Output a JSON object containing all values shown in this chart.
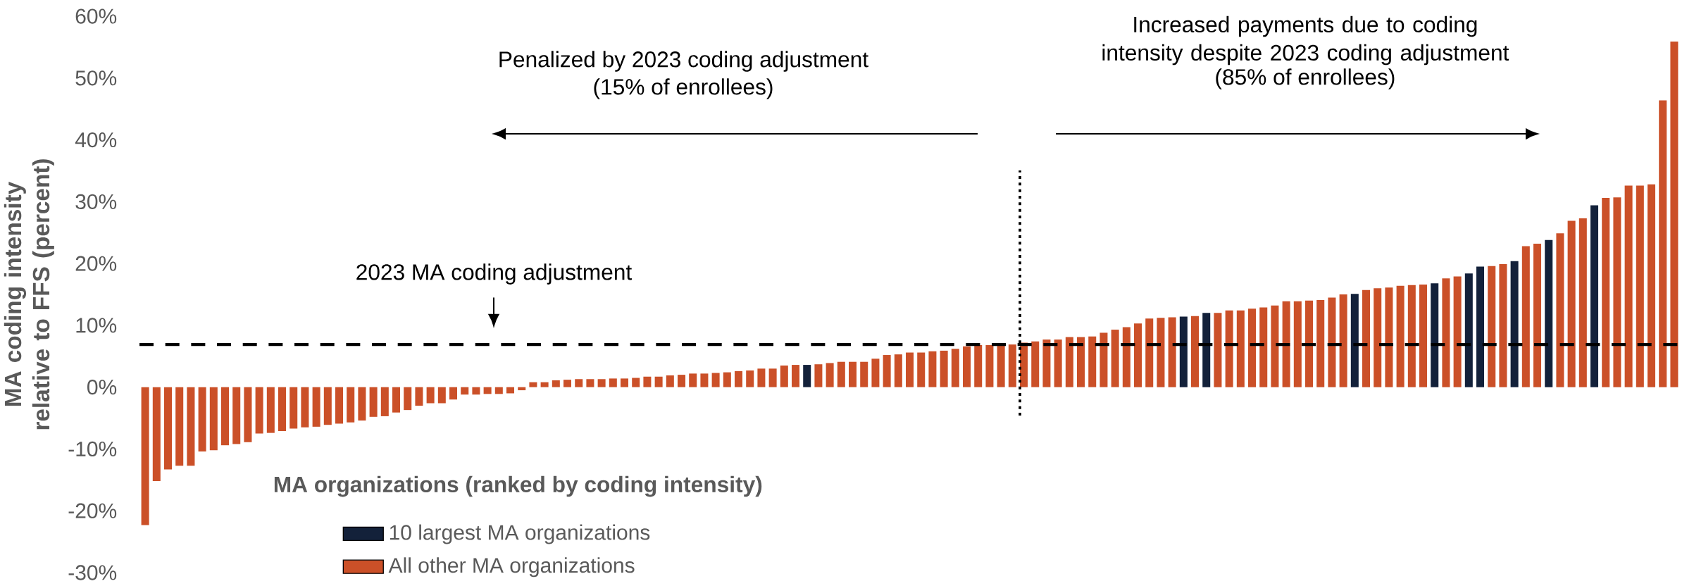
{
  "chart_data": {
    "type": "bar",
    "ylabel": "MA coding intensity relative to FFS (percent)",
    "legend_title": "MA organizations (ranked by coding intensity)",
    "annotations": [
      "Penalized by 2023 coding adjustment",
      "(15% of enrollees)",
      "Increased payments due to coding intensity despite 2023 coding adjustment",
      "(85% of enrollees)"
    ],
    "categories": [
      null,
      null,
      null,
      null,
      null,
      null,
      null,
      null,
      null,
      null,
      null,
      null,
      null,
      null,
      null,
      null,
      null,
      null,
      null,
      null,
      null,
      null,
      null,
      null,
      null,
      null,
      null,
      null,
      null,
      null,
      null,
      null,
      null,
      null,
      null,
      null,
      null,
      null,
      null,
      null,
      null,
      null,
      null,
      null,
      null,
      null,
      null,
      null,
      null,
      null,
      null,
      null,
      null,
      null,
      null,
      null,
      null,
      null,
      null,
      null,
      null,
      null,
      null,
      null,
      null,
      null,
      null,
      null,
      null,
      null,
      null,
      null,
      null,
      null,
      null,
      null,
      null,
      null,
      null,
      null,
      null,
      null,
      null,
      null,
      null,
      null,
      null,
      null,
      null,
      null,
      null,
      null,
      null,
      null,
      null,
      null,
      null,
      null,
      null,
      null,
      null,
      null,
      null,
      null,
      null,
      null,
      null,
      null,
      null,
      null,
      null,
      null,
      null,
      null,
      null,
      null,
      null,
      null,
      null,
      null,
      null,
      null,
      null,
      null,
      null,
      null,
      null,
      null,
      null,
      null,
      null,
      null,
      null,
      null,
      null
    ],
    "series": [
      {
        "name": "10 largest MA organizations",
        "color": "#13213a",
        "values": [
          null,
          null,
          null,
          null,
          null,
          null,
          null,
          null,
          null,
          null,
          null,
          null,
          null,
          null,
          null,
          null,
          null,
          null,
          null,
          null,
          null,
          null,
          null,
          null,
          null,
          null,
          null,
          null,
          null,
          null,
          null,
          null,
          null,
          null,
          null,
          null,
          null,
          null,
          null,
          null,
          null,
          null,
          null,
          null,
          null,
          null,
          null,
          null,
          null,
          null,
          null,
          null,
          null,
          null,
          null,
          null,
          null,
          null,
          3.6,
          null,
          null,
          null,
          null,
          null,
          null,
          null,
          null,
          null,
          null,
          null,
          null,
          null,
          null,
          null,
          null,
          null,
          null,
          null,
          null,
          null,
          null,
          null,
          null,
          null,
          null,
          null,
          null,
          null,
          null,
          null,
          null,
          11.4,
          null,
          12.0,
          null,
          null,
          null,
          null,
          null,
          null,
          null,
          null,
          null,
          null,
          null,
          null,
          15.1,
          null,
          null,
          null,
          null,
          null,
          null,
          16.8,
          null,
          null,
          18.4,
          19.5,
          null,
          null,
          20.4,
          null,
          null,
          23.8,
          null,
          null,
          null,
          29.4,
          null,
          null,
          null,
          null,
          null,
          null,
          null
        ]
      },
      {
        "name": "All other MA organizations",
        "color": "#cb5028",
        "values": [
          -22.3,
          -15.2,
          -13.3,
          -12.7,
          -12.7,
          -10.4,
          -10.2,
          -9.4,
          -9.2,
          -8.9,
          -7.5,
          -7.4,
          -7.1,
          -6.7,
          -6.5,
          -6.4,
          -6.1,
          -5.9,
          -5.7,
          -5.4,
          -4.8,
          -4.7,
          -4.1,
          -3.7,
          -3.0,
          -2.6,
          -2.6,
          -2.0,
          -1.2,
          -1.2,
          -1.1,
          -1.1,
          -1.0,
          -0.5,
          0.8,
          0.8,
          1.1,
          1.2,
          1.3,
          1.3,
          1.3,
          1.4,
          1.4,
          1.5,
          1.7,
          1.7,
          1.9,
          2.0,
          2.2,
          2.2,
          2.3,
          2.4,
          2.6,
          2.7,
          3.0,
          3.0,
          3.5,
          3.6,
          null,
          3.7,
          3.9,
          4.1,
          4.1,
          4.1,
          4.6,
          5.2,
          5.3,
          5.6,
          5.6,
          5.8,
          5.9,
          6.2,
          6.6,
          6.8,
          6.8,
          6.9,
          6.9,
          7.2,
          7.4,
          7.7,
          7.7,
          8.1,
          8.1,
          8.2,
          8.8,
          9.3,
          9.7,
          10.3,
          11.1,
          11.2,
          11.3,
          null,
          11.5,
          null,
          12.0,
          12.4,
          12.4,
          12.7,
          12.9,
          13.2,
          13.9,
          13.9,
          14.0,
          14.1,
          14.5,
          15.0,
          null,
          15.7,
          16.0,
          16.1,
          16.4,
          16.5,
          16.6,
          null,
          17.6,
          17.9,
          null,
          null,
          19.6,
          19.9,
          null,
          22.8,
          23.2,
          null,
          24.9,
          26.9,
          27.3,
          null,
          30.6,
          30.7,
          32.6,
          32.6,
          32.8,
          46.4,
          55.9
        ]
      }
    ],
    "ylim": [
      -30,
      60
    ],
    "yticks": [
      {
        "value": -30,
        "label": "-30%"
      },
      {
        "value": -20,
        "label": "-20%"
      },
      {
        "value": -10,
        "label": "-10%"
      },
      {
        "value": 0,
        "label": "0%"
      },
      {
        "value": 10,
        "label": "10%"
      },
      {
        "value": 20,
        "label": "20%"
      },
      {
        "value": 30,
        "label": "30%"
      },
      {
        "value": 40,
        "label": "40%"
      },
      {
        "value": 50,
        "label": "50%"
      },
      {
        "value": 60,
        "label": "60%"
      }
    ],
    "tick_labels": "y",
    "legend": "bottom left",
    "ref_lines": [
      {
        "axis": "y",
        "value": 6.9,
        "label": "2023 MA coding adjustment",
        "color": "#000000",
        "line_style": "dashed"
      }
    ]
  }
}
